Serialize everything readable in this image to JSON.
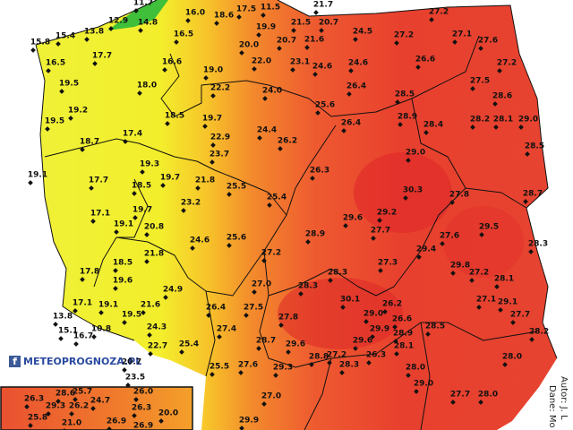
{
  "labels": [
    "11.7",
    "16.0",
    "18.6",
    "17.5",
    "11.5",
    "27.2",
    "12.9",
    "14.8",
    "13.8",
    "15.4",
    "15.8",
    "16.5",
    "19.9",
    "21.5",
    "20.7",
    "20.0",
    "20.7",
    "21.6",
    "24.5",
    "27.2",
    "27.1",
    "27.6",
    "16.5",
    "17.7",
    "16.6",
    "22.0",
    "23.1",
    "24.6",
    "24.6",
    "26.6",
    "27.2",
    "19.0",
    "19.5",
    "18.0",
    "22.2",
    "24.0",
    "26.4",
    "28.5",
    "27.5",
    "28.6",
    "19.2",
    "19.5",
    "18.5",
    "19.7",
    "25.6",
    "28.9",
    "28.4",
    "28.2",
    "28.1",
    "29.0",
    "18.7",
    "17.4",
    "24.4",
    "22.9",
    "26.2",
    "26.4",
    "28.5",
    "19.3",
    "23.7",
    "29.0",
    "19.1",
    "17.7",
    "18.5",
    "19.7",
    "21.8",
    "26.3",
    "25.5",
    "28.7",
    "30.3",
    "19.7",
    "23.2",
    "25.4",
    "27.8",
    "29.6",
    "29.2",
    "17.1",
    "29.5",
    "19.1",
    "20.8",
    "24.6",
    "25.6",
    "27.7",
    "27.6",
    "28.9",
    "28.3",
    "21.8",
    "29.4",
    "27.2",
    "27.3",
    "18.5",
    "29.8",
    "17.8",
    "28.3",
    "27.2",
    "28.1",
    "19.6",
    "24.9",
    "27.0",
    "28.3",
    "13.8",
    "17.1",
    "19.1",
    "21.6",
    "30.1",
    "27.1",
    "29.1",
    "26.4",
    "27.5",
    "26.2",
    "29.0",
    "26.6",
    "27.7",
    "19.5",
    "27.8",
    "15.1",
    "16.7",
    "10.8",
    "24.3",
    "27.4",
    "29.9",
    "28.9",
    "28.5",
    "28.2",
    "28.7",
    "29.6",
    "29.6",
    "28.1",
    "25.4",
    "22.7",
    "27.2",
    "28.8",
    "26.3",
    "28.0",
    "23.5",
    "20.7",
    "25.5",
    "27.6",
    "29.3",
    "28.3",
    "28.0",
    "29.0",
    "27.0",
    "29.9",
    "27.7",
    "28.0",
    "21.7"
  ],
  "inset_labels": [
    "26.3",
    "28.6",
    "25.7",
    "24.7",
    "26.0",
    "25.8",
    "29.3",
    "26.2",
    "21.0",
    "26.9",
    "26.3",
    "20.0",
    "26.9"
  ],
  "logo": "METEOPROGNOZA.PL",
  "credits": {
    "author": "Autor: J. L",
    "data": "Dane: Mo"
  }
}
